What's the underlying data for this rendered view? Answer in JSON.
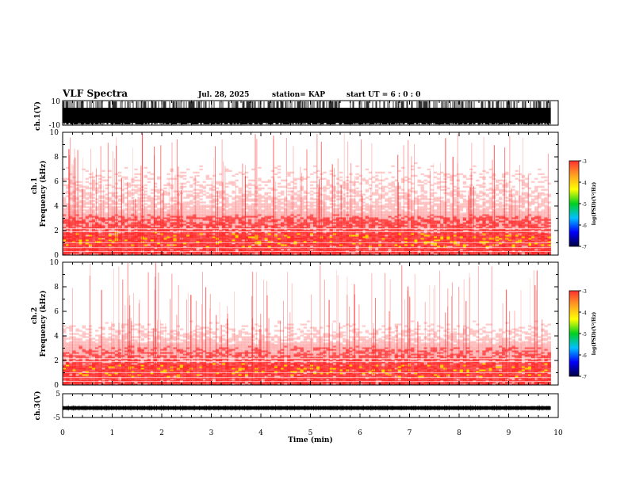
{
  "header": {
    "title": "VLF Spectra",
    "date": "Jul. 28, 2025",
    "station": "station= KAP",
    "start": "start UT =  6 : 0 : 0"
  },
  "colors": {
    "background": "#ffffff",
    "low": "#ff9a9a",
    "mid": "#ff2a2a",
    "high": "#ffd400",
    "waveform": "#000000",
    "colorbar": [
      "#ff3030",
      "#ffa020",
      "#ffff00",
      "#00d020",
      "#00c0ff",
      "#0000ff",
      "#000040"
    ]
  },
  "chart_data": [
    {
      "type": "line",
      "panel": "ch1-waveform",
      "ylabel": "ch.1(V)",
      "ylim": [
        -10,
        10
      ],
      "yticks": [
        "10",
        "-10"
      ],
      "xlim": [
        0,
        10
      ],
      "description_values": {
        "amplitude_fill_fraction": 0.9,
        "data_end_min": 9.85
      }
    },
    {
      "type": "heatmap",
      "panel": "ch1-spectrogram",
      "ylabel": "ch.1\nFrequency (kHz)",
      "ylabel_line1": "ch.1",
      "ylabel_line2": "Frequency (kHz)",
      "ylim": [
        0,
        10
      ],
      "yticks": [
        "0",
        "2",
        "4",
        "6",
        "8",
        "10"
      ],
      "xlim": [
        0,
        10
      ],
      "data_end_min": 9.85,
      "intensity_profile_khz": [
        [
          0,
          0.9
        ],
        [
          1,
          0.95
        ],
        [
          1.5,
          1.0
        ],
        [
          2,
          0.8
        ],
        [
          3,
          0.7
        ],
        [
          3.5,
          0.35
        ],
        [
          5,
          0.25
        ],
        [
          7,
          0.2
        ],
        [
          10,
          0.15
        ]
      ],
      "colorbar": {
        "label": "log(PSD)(V²/Hz)",
        "ticks": [
          "-3",
          "-4",
          "-5",
          "-6",
          "-7"
        ],
        "range": [
          -7,
          -3
        ]
      }
    },
    {
      "type": "heatmap",
      "panel": "ch2-spectrogram",
      "ylabel": "ch.2\nFrequency (kHz)",
      "ylabel_line1": "ch.2",
      "ylabel_line2": "Frequency (kHz)",
      "ylim": [
        0,
        10
      ],
      "yticks": [
        "0",
        "2",
        "4",
        "6",
        "8",
        "10"
      ],
      "xlim": [
        0,
        10
      ],
      "data_end_min": 9.85,
      "intensity_profile_khz": [
        [
          0,
          0.9
        ],
        [
          1,
          0.95
        ],
        [
          1.5,
          1.0
        ],
        [
          2,
          0.75
        ],
        [
          3,
          0.6
        ],
        [
          3.5,
          0.3
        ],
        [
          5,
          0.2
        ],
        [
          7,
          0.15
        ],
        [
          10,
          0.12
        ]
      ],
      "colorbar": {
        "label": "log(PSD)(V²/Hz)",
        "ticks": [
          "-3",
          "-4",
          "-5",
          "-6",
          "-7"
        ],
        "range": [
          -7,
          -3
        ]
      }
    },
    {
      "type": "line",
      "panel": "ch3-waveform",
      "ylabel": "ch.3(V)",
      "ylim": [
        -5,
        5
      ],
      "yticks": [
        "5",
        "-5"
      ],
      "xlim": [
        0,
        10
      ],
      "xticks": [
        "0",
        "1",
        "2",
        "3",
        "4",
        "5",
        "6",
        "7",
        "8",
        "9",
        "10"
      ],
      "xlabel": "Time (min)",
      "description_values": {
        "level_v": -1,
        "amplitude_v": 0.7,
        "data_end_min": 9.85
      }
    }
  ]
}
